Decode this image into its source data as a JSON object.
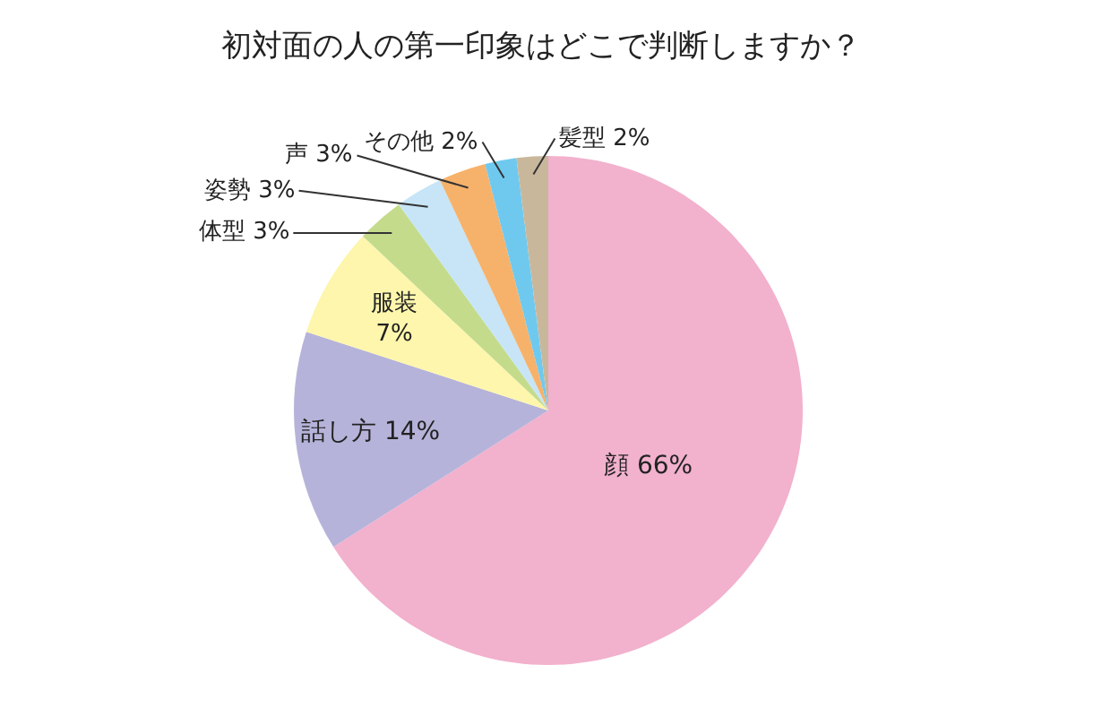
{
  "chart_data": {
    "type": "pie",
    "title": "初対面の人の第一印象はどこで判断しますか？",
    "categories": [
      "顔",
      "話し方",
      "服装",
      "体型",
      "姿勢",
      "声",
      "その他",
      "髪型"
    ],
    "values": [
      66,
      14,
      7,
      3,
      3,
      3,
      2,
      2
    ],
    "value_labels": [
      "66%",
      "14%",
      "7%",
      "3%",
      "3%",
      "3%",
      "2%",
      "2%"
    ],
    "colors": [
      "#f2b1cd",
      "#b6b3da",
      "#fdf6ac",
      "#c4db8c",
      "#c7e5f6",
      "#f6b26b",
      "#6fc9ee",
      "#c9b79c"
    ],
    "legend": false
  }
}
